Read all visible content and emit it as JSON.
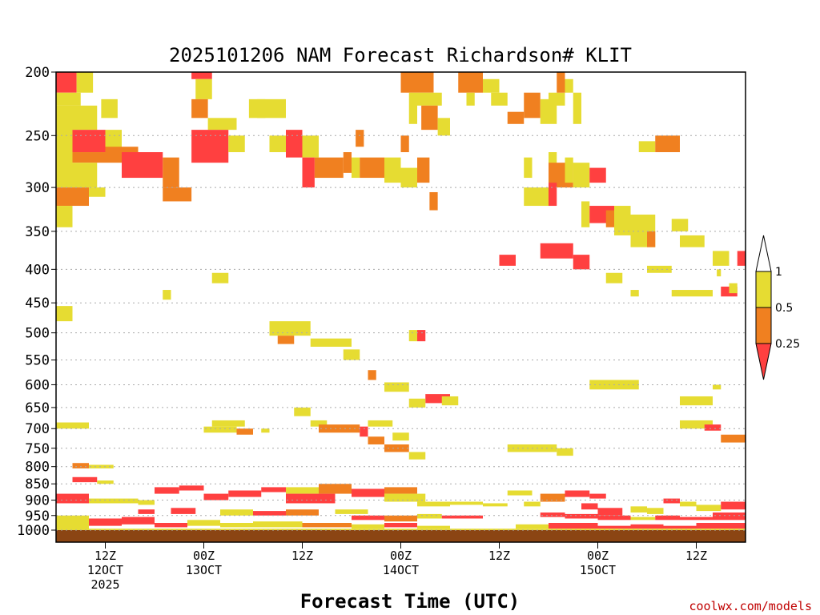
{
  "chart_data": {
    "type": "heatmap",
    "title": "2025101206 NAM Forecast Richardson# KLIT",
    "xlabel": "Forecast Time (UTC)",
    "ylabel": "",
    "credit": "coolwx.com/models",
    "x_range_hours": [
      0,
      84
    ],
    "y_range_hpa": [
      1000,
      200
    ],
    "y_ticks": [
      200,
      250,
      300,
      350,
      400,
      450,
      500,
      550,
      600,
      650,
      700,
      750,
      800,
      850,
      900,
      950,
      1000
    ],
    "x_ticks": [
      {
        "hour": 6,
        "line1": "12Z",
        "line2": "12OCT",
        "line3": "2025"
      },
      {
        "hour": 18,
        "line1": "00Z",
        "line2": "13OCT",
        "line3": ""
      },
      {
        "hour": 30,
        "line1": "12Z",
        "line2": "",
        "line3": ""
      },
      {
        "hour": 42,
        "line1": "00Z",
        "line2": "14OCT",
        "line3": ""
      },
      {
        "hour": 54,
        "line1": "12Z",
        "line2": "",
        "line3": ""
      },
      {
        "hour": 66,
        "line1": "00Z",
        "line2": "15OCT",
        "line3": ""
      },
      {
        "hour": 78,
        "line1": "12Z",
        "line2": "",
        "line3": ""
      }
    ],
    "gridlines": "dotted horizontal",
    "legend": {
      "placement": "right",
      "labels": [
        "1",
        "0.5",
        "0.25"
      ],
      "colors": {
        "lt_0_25": "#ff4040",
        "0_25_0_5": "#f08020",
        "0_5_1": "#e6dc32",
        "gt_1": "#ffffff"
      }
    },
    "colors": {
      "red": "#ff4040",
      "orange": "#f08020",
      "yellow": "#e6dc32",
      "ground": "#8b4513"
    },
    "cells_note": "each cell: [hour_start, hour_end, p_top_hPa, p_bottom_hPa, class] where class 1=<0.25, 2=0.25-0.5, 3=0.5-1",
    "cells": [
      [
        0,
        2.5,
        200,
        215,
        1
      ],
      [
        2.5,
        4.5,
        200,
        215,
        3
      ],
      [
        0,
        3,
        215,
        225,
        3
      ],
      [
        0,
        2,
        225,
        300,
        3
      ],
      [
        2,
        5,
        225,
        245,
        3
      ],
      [
        5.5,
        7.5,
        220,
        235,
        3
      ],
      [
        2,
        6,
        245,
        265,
        1
      ],
      [
        6,
        8,
        245,
        265,
        3
      ],
      [
        2,
        6,
        265,
        275,
        2
      ],
      [
        6,
        10,
        260,
        275,
        2
      ],
      [
        2,
        5,
        275,
        300,
        3
      ],
      [
        8,
        13,
        265,
        290,
        1
      ],
      [
        13,
        15,
        270,
        300,
        2
      ],
      [
        0,
        4,
        300,
        320,
        2
      ],
      [
        0,
        2,
        320,
        345,
        3
      ],
      [
        4,
        6,
        300,
        310,
        3
      ],
      [
        13,
        16.5,
        300,
        315,
        2
      ],
      [
        16.5,
        19,
        200,
        205,
        1
      ],
      [
        17,
        19,
        205,
        220,
        3
      ],
      [
        16.5,
        18.5,
        220,
        235,
        2
      ],
      [
        18.5,
        22,
        235,
        245,
        3
      ],
      [
        16.5,
        21,
        245,
        275,
        1
      ],
      [
        21,
        23,
        250,
        265,
        3
      ],
      [
        23.5,
        25.5,
        220,
        235,
        3
      ],
      [
        24.5,
        28,
        220,
        235,
        3
      ],
      [
        26,
        28,
        250,
        265,
        3
      ],
      [
        28,
        30,
        245,
        270,
        1
      ],
      [
        30,
        32,
        250,
        270,
        3
      ],
      [
        30,
        31.5,
        270,
        300,
        1
      ],
      [
        31.5,
        35,
        270,
        290,
        2
      ],
      [
        35,
        36,
        265,
        285,
        2
      ],
      [
        36,
        37,
        270,
        290,
        3
      ],
      [
        36.5,
        37.5,
        245,
        260,
        2
      ],
      [
        37,
        40,
        270,
        290,
        2
      ],
      [
        40,
        42,
        270,
        295,
        3
      ],
      [
        42,
        43,
        250,
        265,
        2
      ],
      [
        42,
        44,
        280,
        300,
        3
      ],
      [
        42,
        46,
        200,
        215,
        2
      ],
      [
        43,
        44,
        215,
        240,
        3
      ],
      [
        44,
        47,
        215,
        225,
        3
      ],
      [
        44.5,
        46.5,
        225,
        245,
        2
      ],
      [
        46.5,
        48,
        235,
        250,
        3
      ],
      [
        44,
        45.5,
        270,
        295,
        2
      ],
      [
        45.5,
        46.5,
        305,
        325,
        2
      ],
      [
        49,
        52,
        200,
        215,
        2
      ],
      [
        50,
        51,
        215,
        225,
        3
      ],
      [
        52,
        54,
        205,
        215,
        3
      ],
      [
        53,
        55,
        215,
        225,
        3
      ],
      [
        55,
        57,
        230,
        240,
        2
      ],
      [
        57,
        59,
        215,
        235,
        2
      ],
      [
        59,
        61,
        220,
        240,
        3
      ],
      [
        57,
        58,
        270,
        290,
        3
      ],
      [
        57,
        60,
        300,
        320,
        3
      ],
      [
        60,
        61,
        265,
        285,
        3
      ],
      [
        60,
        62,
        215,
        225,
        3
      ],
      [
        60,
        63,
        275,
        300,
        2
      ],
      [
        60,
        61,
        295,
        320,
        1
      ],
      [
        61,
        62,
        200,
        215,
        2
      ],
      [
        62,
        63,
        205,
        215,
        3
      ],
      [
        63,
        64,
        215,
        240,
        3
      ],
      [
        62,
        63,
        270,
        295,
        3
      ],
      [
        63,
        65,
        275,
        300,
        3
      ],
      [
        65,
        67,
        280,
        295,
        1
      ],
      [
        64,
        65,
        315,
        345,
        3
      ],
      [
        65,
        68,
        320,
        340,
        1
      ],
      [
        67,
        69,
        325,
        345,
        2
      ],
      [
        68,
        70,
        320,
        355,
        3
      ],
      [
        70,
        73,
        330,
        370,
        3
      ],
      [
        72,
        73,
        350,
        370,
        2
      ],
      [
        71,
        73,
        255,
        265,
        3
      ],
      [
        73,
        76,
        250,
        265,
        2
      ],
      [
        75,
        77,
        335,
        350,
        3
      ],
      [
        76,
        79,
        355,
        370,
        3
      ],
      [
        80,
        82,
        375,
        395,
        3
      ],
      [
        80.5,
        81,
        400,
        410,
        3
      ],
      [
        81,
        83,
        425,
        440,
        1
      ],
      [
        83,
        84,
        375,
        395,
        1
      ],
      [
        82,
        83,
        420,
        435,
        3
      ],
      [
        54,
        56,
        380,
        395,
        1
      ],
      [
        59,
        63,
        365,
        385,
        1
      ],
      [
        63,
        65,
        380,
        400,
        1
      ],
      [
        67,
        69,
        405,
        420,
        3
      ],
      [
        70,
        71,
        430,
        440,
        3
      ],
      [
        72,
        75,
        395,
        405,
        3
      ],
      [
        75,
        78,
        430,
        440,
        3
      ],
      [
        78,
        80,
        430,
        440,
        3
      ],
      [
        19,
        21,
        405,
        420,
        3
      ],
      [
        13,
        14,
        430,
        445,
        3
      ],
      [
        0,
        2,
        455,
        480,
        3
      ],
      [
        26,
        31,
        480,
        505,
        3
      ],
      [
        27,
        29,
        505,
        520,
        2
      ],
      [
        31,
        36,
        510,
        525,
        3
      ],
      [
        35,
        37,
        530,
        550,
        3
      ],
      [
        38,
        39,
        570,
        590,
        2
      ],
      [
        40,
        43,
        595,
        615,
        3
      ],
      [
        43,
        44,
        495,
        515,
        3
      ],
      [
        44,
        45,
        495,
        515,
        1
      ],
      [
        45,
        48,
        620,
        640,
        1
      ],
      [
        43,
        45,
        630,
        650,
        3
      ],
      [
        47,
        49,
        625,
        645,
        3
      ],
      [
        65,
        71,
        590,
        610,
        3
      ],
      [
        76,
        80,
        625,
        645,
        3
      ],
      [
        80,
        81,
        600,
        610,
        3
      ],
      [
        29,
        31,
        650,
        670,
        3
      ],
      [
        0,
        4,
        685,
        700,
        3
      ],
      [
        19,
        23,
        680,
        695,
        3
      ],
      [
        18,
        22,
        695,
        710,
        3
      ],
      [
        22,
        24,
        700,
        715,
        2
      ],
      [
        25,
        26,
        700,
        710,
        3
      ],
      [
        31,
        33,
        680,
        695,
        3
      ],
      [
        32,
        37,
        690,
        710,
        2
      ],
      [
        37,
        38,
        695,
        720,
        1
      ],
      [
        38,
        41,
        680,
        695,
        3
      ],
      [
        38,
        40,
        720,
        740,
        2
      ],
      [
        40,
        43,
        740,
        760,
        2
      ],
      [
        43,
        45,
        760,
        780,
        3
      ],
      [
        41,
        43,
        710,
        730,
        3
      ],
      [
        55,
        61,
        740,
        760,
        3
      ],
      [
        61,
        63,
        750,
        770,
        3
      ],
      [
        76,
        80,
        680,
        700,
        3
      ],
      [
        79,
        81,
        690,
        705,
        1
      ],
      [
        81,
        84,
        715,
        735,
        2
      ],
      [
        2,
        4,
        790,
        805,
        2
      ],
      [
        4,
        7,
        795,
        805,
        3
      ],
      [
        2,
        5,
        830,
        845,
        1
      ],
      [
        5,
        7,
        840,
        850,
        3
      ],
      [
        0,
        4,
        880,
        910,
        1
      ],
      [
        4,
        10,
        895,
        910,
        3
      ],
      [
        10,
        12,
        900,
        915,
        3
      ],
      [
        12,
        15,
        860,
        880,
        1
      ],
      [
        15,
        18,
        855,
        870,
        1
      ],
      [
        18,
        21,
        880,
        900,
        1
      ],
      [
        21,
        25,
        870,
        890,
        1
      ],
      [
        25,
        28,
        860,
        875,
        1
      ],
      [
        28,
        32,
        860,
        880,
        3
      ],
      [
        28,
        34,
        880,
        910,
        1
      ],
      [
        32,
        36,
        850,
        880,
        2
      ],
      [
        36,
        40,
        865,
        890,
        1
      ],
      [
        40,
        44,
        860,
        880,
        2
      ],
      [
        40,
        45,
        880,
        905,
        3
      ],
      [
        44,
        48,
        905,
        920,
        3
      ],
      [
        48,
        52,
        905,
        915,
        3
      ],
      [
        52,
        55,
        910,
        920,
        3
      ],
      [
        55,
        58,
        870,
        885,
        3
      ],
      [
        57,
        59,
        905,
        920,
        3
      ],
      [
        59,
        62,
        880,
        905,
        2
      ],
      [
        62,
        65,
        870,
        890,
        1
      ],
      [
        65,
        67,
        880,
        895,
        1
      ],
      [
        64,
        66,
        910,
        930,
        1
      ],
      [
        66,
        69,
        925,
        950,
        1
      ],
      [
        70,
        72,
        920,
        940,
        3
      ],
      [
        72,
        74,
        925,
        945,
        3
      ],
      [
        74,
        76,
        895,
        910,
        1
      ],
      [
        76,
        78,
        905,
        920,
        3
      ],
      [
        78,
        81,
        915,
        935,
        3
      ],
      [
        81,
        84,
        905,
        930,
        1
      ],
      [
        10,
        12,
        930,
        945,
        1
      ],
      [
        14,
        17,
        925,
        945,
        1
      ],
      [
        20,
        24,
        930,
        950,
        3
      ],
      [
        24,
        28,
        935,
        950,
        1
      ],
      [
        28,
        32,
        930,
        950,
        2
      ],
      [
        34,
        38,
        930,
        945,
        3
      ],
      [
        36,
        40,
        950,
        965,
        1
      ],
      [
        40,
        44,
        950,
        970,
        2
      ],
      [
        44,
        47,
        945,
        960,
        3
      ],
      [
        47,
        52,
        950,
        960,
        1
      ],
      [
        59,
        62,
        940,
        955,
        1
      ],
      [
        62,
        66,
        945,
        960,
        1
      ],
      [
        66,
        70,
        950,
        965,
        1
      ],
      [
        70,
        73,
        955,
        965,
        3
      ],
      [
        73,
        76,
        950,
        965,
        1
      ],
      [
        76,
        80,
        955,
        965,
        1
      ],
      [
        80,
        84,
        940,
        965,
        1
      ],
      [
        0,
        4,
        950,
        1000,
        3
      ],
      [
        4,
        8,
        960,
        985,
        1
      ],
      [
        8,
        12,
        955,
        980,
        1
      ],
      [
        12,
        16,
        975,
        990,
        1
      ],
      [
        16,
        20,
        965,
        985,
        3
      ],
      [
        20,
        24,
        975,
        990,
        3
      ],
      [
        24,
        30,
        970,
        990,
        3
      ],
      [
        30,
        36,
        975,
        990,
        2
      ],
      [
        36,
        40,
        980,
        995,
        3
      ],
      [
        40,
        44,
        975,
        990,
        1
      ],
      [
        44,
        48,
        985,
        995,
        3
      ],
      [
        56,
        60,
        980,
        995,
        3
      ],
      [
        60,
        66,
        975,
        995,
        1
      ],
      [
        66,
        70,
        985,
        995,
        1
      ],
      [
        70,
        74,
        980,
        995,
        1
      ],
      [
        74,
        78,
        985,
        995,
        1
      ],
      [
        78,
        84,
        975,
        995,
        1
      ],
      [
        0,
        84,
        995,
        1000,
        3
      ]
    ]
  }
}
